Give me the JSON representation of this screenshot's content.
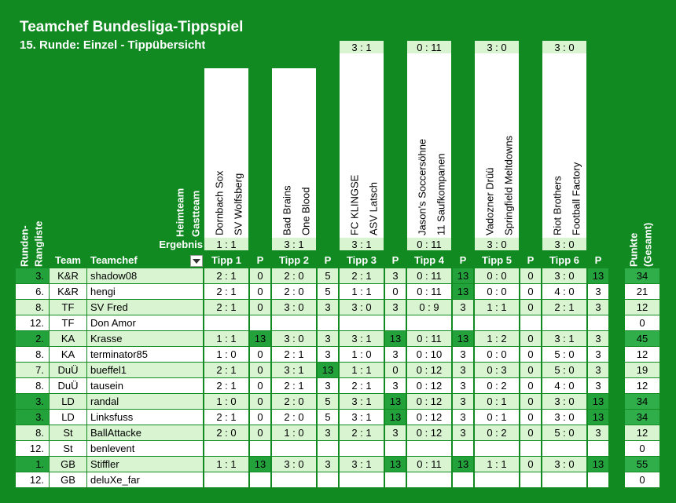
{
  "header": {
    "title": "Teamchef Bundesliga-Tippspiel",
    "subtitle": "15. Runde: Einzel - Tippübersicht"
  },
  "labels": {
    "home": "Heimteam",
    "away": "Gastteam",
    "result": "Ergebnis",
    "rank": [
      "Runden-",
      "Rangliste"
    ],
    "team": "Team",
    "name": "Teamchef",
    "points": "P",
    "total": [
      "Punkte",
      "(Gesamt)"
    ]
  },
  "matches": [
    {
      "home": "Dornbach Sox",
      "away": "SV Wolfsberg",
      "result": "1 : 1",
      "tipp": "Tipp 1"
    },
    {
      "home": "Bad Brains",
      "away": "One Blood",
      "result": "3 : 1",
      "tipp": "Tipp 2"
    },
    {
      "home": "FC KLINGSE",
      "away": "ASV Latsch",
      "result": "3 : 1",
      "tipp": "Tipp 3"
    },
    {
      "home": "Jason's Soccersöhne",
      "away": "11 Saufkompanen",
      "result": "0 : 11",
      "tipp": "Tipp 4"
    },
    {
      "home": "Vadozner Drüü",
      "away": "Springfield Meltdowns",
      "result": "3 : 0",
      "tipp": "Tipp 5"
    },
    {
      "home": "Riot Brothers",
      "away": "Football Factory",
      "result": "3 : 0",
      "tipp": "Tipp 6"
    }
  ],
  "rows": [
    {
      "rank": "3.",
      "team": "K&R",
      "name": "shadow08",
      "highlight": true,
      "total": 34,
      "tips": [
        {
          "tipp": "2 : 1",
          "points": 0
        },
        {
          "tipp": "2 : 0",
          "points": 5
        },
        {
          "tipp": "2 : 1",
          "points": 3
        },
        {
          "tipp": "0 : 11",
          "points": 13
        },
        {
          "tipp": "0 : 0",
          "points": 0
        },
        {
          "tipp": "3 : 0",
          "points": 13
        }
      ]
    },
    {
      "rank": "6.",
      "team": "K&R",
      "name": "hengi",
      "highlight": false,
      "total": 21,
      "tips": [
        {
          "tipp": "2 : 1",
          "points": 0
        },
        {
          "tipp": "2 : 0",
          "points": 5
        },
        {
          "tipp": "1 : 1",
          "points": 0
        },
        {
          "tipp": "0 : 11",
          "points": 13
        },
        {
          "tipp": "0 : 0",
          "points": 0
        },
        {
          "tipp": "4 : 0",
          "points": 3
        }
      ]
    },
    {
      "rank": "8.",
      "team": "TF",
      "name": "SV Fred",
      "highlight": false,
      "total": 12,
      "tips": [
        {
          "tipp": "2 : 1",
          "points": 0
        },
        {
          "tipp": "3 : 0",
          "points": 3
        },
        {
          "tipp": "3 : 0",
          "points": 3
        },
        {
          "tipp": "0 : 9",
          "points": 3
        },
        {
          "tipp": "1 : 1",
          "points": 0
        },
        {
          "tipp": "2 : 1",
          "points": 3
        }
      ]
    },
    {
      "rank": "12.",
      "team": "TF",
      "name": "Don Amor",
      "highlight": false,
      "total": 0,
      "tips": null
    },
    {
      "rank": "2.",
      "team": "KA",
      "name": "Krasse",
      "highlight": true,
      "total": 45,
      "tips": [
        {
          "tipp": "1 : 1",
          "points": 13
        },
        {
          "tipp": "3 : 0",
          "points": 3
        },
        {
          "tipp": "3 : 1",
          "points": 13
        },
        {
          "tipp": "0 : 11",
          "points": 13
        },
        {
          "tipp": "1 : 2",
          "points": 0
        },
        {
          "tipp": "3 : 1",
          "points": 3
        }
      ]
    },
    {
      "rank": "8.",
      "team": "KA",
      "name": "terminator85",
      "highlight": false,
      "total": 12,
      "tips": [
        {
          "tipp": "1 : 0",
          "points": 0
        },
        {
          "tipp": "2 : 1",
          "points": 3
        },
        {
          "tipp": "1 : 0",
          "points": 3
        },
        {
          "tipp": "0 : 10",
          "points": 3
        },
        {
          "tipp": "0 : 0",
          "points": 0
        },
        {
          "tipp": "5 : 0",
          "points": 3
        }
      ]
    },
    {
      "rank": "7.",
      "team": "DuÜ",
      "name": "bueffel1",
      "highlight": false,
      "total": 19,
      "tips": [
        {
          "tipp": "2 : 1",
          "points": 0
        },
        {
          "tipp": "3 : 1",
          "points": 13
        },
        {
          "tipp": "1 : 1",
          "points": 0
        },
        {
          "tipp": "0 : 12",
          "points": 3
        },
        {
          "tipp": "0 : 3",
          "points": 0
        },
        {
          "tipp": "5 : 0",
          "points": 3
        }
      ]
    },
    {
      "rank": "8.",
      "team": "DuÜ",
      "name": "tausein",
      "highlight": false,
      "total": 12,
      "tips": [
        {
          "tipp": "2 : 1",
          "points": 0
        },
        {
          "tipp": "2 : 1",
          "points": 3
        },
        {
          "tipp": "2 : 1",
          "points": 3
        },
        {
          "tipp": "0 : 12",
          "points": 3
        },
        {
          "tipp": "0 : 2",
          "points": 0
        },
        {
          "tipp": "4 : 0",
          "points": 3
        }
      ]
    },
    {
      "rank": "3.",
      "team": "LD",
      "name": "randal",
      "highlight": true,
      "total": 34,
      "tips": [
        {
          "tipp": "1 : 0",
          "points": 0
        },
        {
          "tipp": "2 : 0",
          "points": 5
        },
        {
          "tipp": "3 : 1",
          "points": 13
        },
        {
          "tipp": "0 : 12",
          "points": 3
        },
        {
          "tipp": "0 : 1",
          "points": 0
        },
        {
          "tipp": "3 : 0",
          "points": 13
        }
      ]
    },
    {
      "rank": "3.",
      "team": "LD",
      "name": "Linksfuss",
      "highlight": true,
      "total": 34,
      "tips": [
        {
          "tipp": "2 : 1",
          "points": 0
        },
        {
          "tipp": "2 : 0",
          "points": 5
        },
        {
          "tipp": "3 : 1",
          "points": 13
        },
        {
          "tipp": "0 : 12",
          "points": 3
        },
        {
          "tipp": "0 : 1",
          "points": 0
        },
        {
          "tipp": "3 : 0",
          "points": 13
        }
      ]
    },
    {
      "rank": "8.",
      "team": "St",
      "name": "BallAttacke",
      "highlight": false,
      "total": 12,
      "tips": [
        {
          "tipp": "2 : 0",
          "points": 0
        },
        {
          "tipp": "1 : 0",
          "points": 3
        },
        {
          "tipp": "2 : 1",
          "points": 3
        },
        {
          "tipp": "0 : 12",
          "points": 3
        },
        {
          "tipp": "0 : 2",
          "points": 0
        },
        {
          "tipp": "5 : 0",
          "points": 3
        }
      ]
    },
    {
      "rank": "12.",
      "team": "St",
      "name": "benlevent",
      "highlight": false,
      "total": 0,
      "tips": null
    },
    {
      "rank": "1.",
      "team": "GB",
      "name": "Stiffler",
      "highlight": true,
      "total": 55,
      "tips": [
        {
          "tipp": "1 : 1",
          "points": 13
        },
        {
          "tipp": "3 : 0",
          "points": 3
        },
        {
          "tipp": "3 : 1",
          "points": 13
        },
        {
          "tipp": "0 : 11",
          "points": 13
        },
        {
          "tipp": "1 : 1",
          "points": 0
        },
        {
          "tipp": "3 : 0",
          "points": 13
        }
      ]
    },
    {
      "rank": "12.",
      "team": "GB",
      "name": "deluXe_far",
      "highlight": false,
      "total": 0,
      "tips": null
    }
  ]
}
